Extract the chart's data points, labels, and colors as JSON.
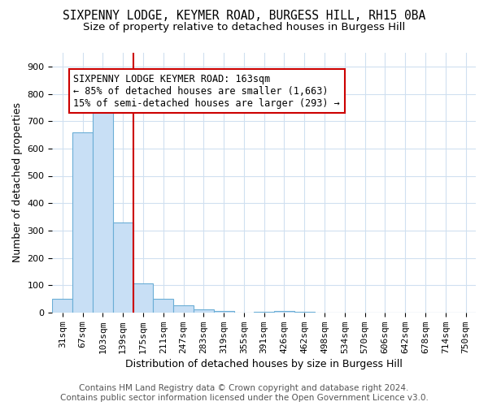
{
  "title": "SIXPENNY LODGE, KEYMER ROAD, BURGESS HILL, RH15 0BA",
  "subtitle": "Size of property relative to detached houses in Burgess Hill",
  "xlabel": "Distribution of detached houses by size in Burgess Hill",
  "ylabel": "Number of detached properties",
  "categories": [
    "31sqm",
    "67sqm",
    "103sqm",
    "139sqm",
    "175sqm",
    "211sqm",
    "247sqm",
    "283sqm",
    "319sqm",
    "355sqm",
    "391sqm",
    "426sqm",
    "462sqm",
    "498sqm",
    "534sqm",
    "570sqm",
    "606sqm",
    "642sqm",
    "678sqm",
    "714sqm",
    "750sqm"
  ],
  "values": [
    50,
    660,
    740,
    330,
    105,
    50,
    25,
    12,
    5,
    0,
    1,
    5,
    1,
    0,
    0,
    0,
    0,
    0,
    0,
    0,
    0
  ],
  "bar_color": "#c8dff5",
  "bar_edge_color": "#6baed6",
  "vline_x": 4,
  "vline_color": "#cc0000",
  "annotation_text": "SIXPENNY LODGE KEYMER ROAD: 163sqm\n← 85% of detached houses are smaller (1,663)\n15% of semi-detached houses are larger (293) →",
  "annotation_box_color": "white",
  "annotation_box_edge_color": "#cc0000",
  "ylim": [
    0,
    950
  ],
  "yticks": [
    0,
    100,
    200,
    300,
    400,
    500,
    600,
    700,
    800,
    900
  ],
  "footer": "Contains HM Land Registry data © Crown copyright and database right 2024.\nContains public sector information licensed under the Open Government Licence v3.0.",
  "background_color": "white",
  "grid_color": "#d0e0f0",
  "title_fontsize": 10.5,
  "subtitle_fontsize": 9.5,
  "axis_label_fontsize": 9,
  "tick_fontsize": 8,
  "annotation_fontsize": 8.5,
  "footer_fontsize": 7.5
}
